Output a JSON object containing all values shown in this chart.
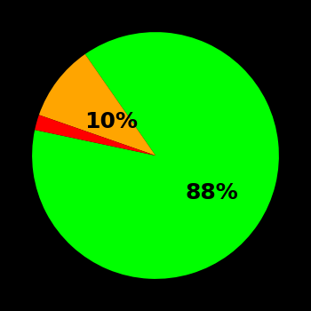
{
  "slices": [
    88,
    10,
    2
  ],
  "colors": [
    "#00ff00",
    "#ffa500",
    "#ff0000"
  ],
  "labels": [
    "88%",
    "10%",
    ""
  ],
  "background_color": "#000000",
  "text_color": "#000000",
  "startangle": 168,
  "label_fontsize": 18,
  "label_fontweight": "bold",
  "label_radii": [
    0.55,
    0.45,
    0.0
  ]
}
